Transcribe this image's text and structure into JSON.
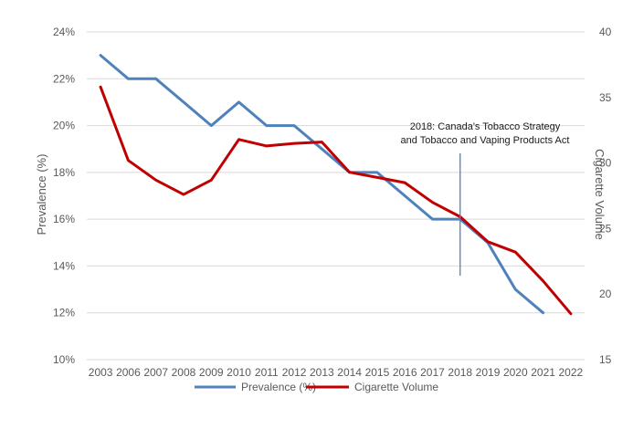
{
  "chart_data": {
    "type": "line",
    "title": "",
    "x": [
      "2003",
      "2006",
      "2007",
      "2008",
      "2009",
      "2010",
      "2011",
      "2012",
      "2013",
      "2014",
      "2015",
      "2016",
      "2017",
      "2018",
      "2019",
      "2020",
      "2021",
      "2022"
    ],
    "xlabel": "",
    "ylabel": "Prevalence (%)",
    "y2label": "Cigarette Volume",
    "ylim": [
      10,
      24
    ],
    "y2lim": [
      15,
      40
    ],
    "yticks": [
      "10%",
      "12%",
      "14%",
      "16%",
      "18%",
      "20%",
      "22%",
      "24%"
    ],
    "y2ticks": [
      "15",
      "20",
      "25",
      "30",
      "35",
      "40"
    ],
    "grid": true,
    "legend_position": "bottom",
    "series": [
      {
        "name": "Prevalence (%)",
        "axis": "left",
        "color": "#4f81bd",
        "values": [
          23,
          22,
          22,
          21,
          20,
          21,
          20,
          20,
          19,
          18,
          18,
          17,
          16,
          16,
          15,
          13,
          12,
          null
        ]
      },
      {
        "name": "Cigarette Volume",
        "axis": "right",
        "color": "#c00000",
        "values": [
          35.8,
          30.2,
          28.7,
          27.6,
          28.7,
          31.8,
          31.3,
          31.5,
          31.6,
          29.3,
          28.9,
          28.5,
          27.0,
          25.9,
          24.0,
          23.2,
          21.0,
          18.5
        ]
      }
    ],
    "annotations": [
      {
        "text_line1": "2018: Canada's Tobacco Strategy",
        "text_line2": "and Tobacco and Vaping Products Act",
        "x": "2018"
      }
    ]
  }
}
